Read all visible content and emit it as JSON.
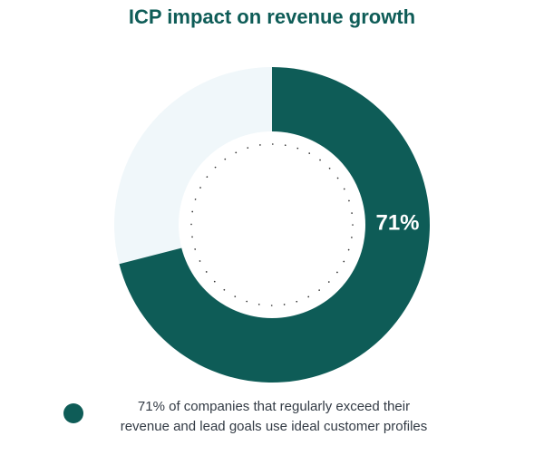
{
  "chart_data": {
    "type": "pie",
    "title": "ICP impact on revenue growth",
    "categories": [
      "",
      ""
    ],
    "values": [
      71,
      29
    ],
    "data_label": "71%",
    "legend": {
      "placement": "bottom",
      "entries": [
        "71% of companies that regularly exceed their\nrevenue and lead goals use ideal customer profiles"
      ]
    },
    "colors": {
      "title": "#0e5c57",
      "primary": "#0e5c57",
      "remainder": "#f0f7fa",
      "data_label": "#ffffff",
      "dots": "#333333"
    }
  }
}
